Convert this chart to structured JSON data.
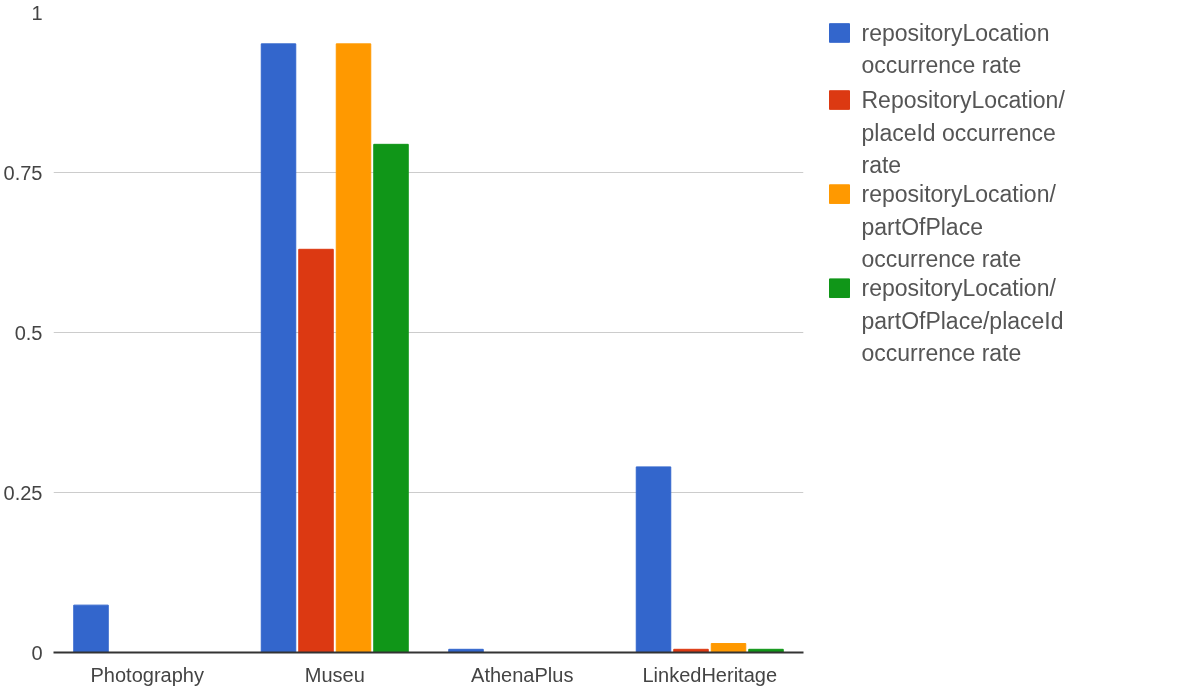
{
  "chart_data": {
    "type": "bar",
    "categories": [
      "Photography",
      "Museu",
      "AthenaPlus",
      "LinkedHeritage"
    ],
    "series": [
      {
        "name": "repositoryLocation occurrence rate",
        "color": "#3366cc",
        "values": [
          0.074,
          0.951,
          0.005,
          0.29
        ]
      },
      {
        "name": "RepositoryLocation/placeId occurrence rate",
        "color": "#dc3912",
        "values": [
          0,
          0.63,
          0,
          0.005
        ]
      },
      {
        "name": "repositoryLocation/partOfPlace occurrence rate",
        "color": "#ff9900",
        "values": [
          0,
          0.951,
          0,
          0.014
        ]
      },
      {
        "name": "repositoryLocation/partOfPlace/placeId occurrence rate",
        "color": "#109618",
        "values": [
          0,
          0.794,
          0,
          0.005
        ]
      }
    ],
    "ylim": [
      0,
      1
    ],
    "yticks": [
      0,
      0.25,
      0.5,
      0.75,
      1
    ],
    "grid": "y",
    "legend": "right"
  }
}
